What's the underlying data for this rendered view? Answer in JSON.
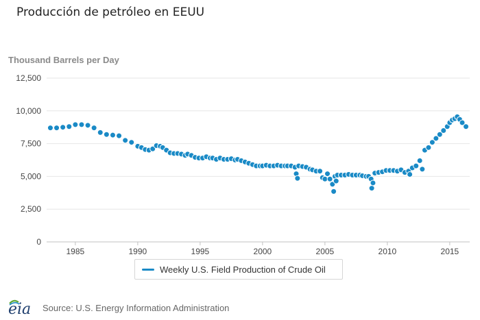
{
  "page": {
    "title": "Producción de petróleo en EEUU",
    "source": "Source: U.S. Energy Information Administration",
    "logo_text": "eia"
  },
  "colors": {
    "series": "#1a8ac6",
    "axis": "#c0c0c0",
    "grid": "#e6e6e6",
    "text": "#444444",
    "ylabel": "#8a8a8a"
  },
  "chart_data": {
    "type": "scatter",
    "title": "",
    "ylabel": "Thousand Barrels per Day",
    "xlabel": "",
    "xlim": [
      1982.7,
      2016.6
    ],
    "ylim": [
      0,
      12500
    ],
    "yticks": [
      0,
      2500,
      5000,
      7500,
      10000,
      12500
    ],
    "ytick_labels": [
      "0",
      "2,500",
      "5,000",
      "7,500",
      "10,000",
      "12,500"
    ],
    "xticks": [
      1985,
      1990,
      1995,
      2000,
      2005,
      2010,
      2015
    ],
    "xtick_labels": [
      "1985",
      "1990",
      "1995",
      "2000",
      "2005",
      "2010",
      "2015"
    ],
    "grid": "horizontal",
    "legend_position": "bottom",
    "series": [
      {
        "name": "Weekly U.S. Field Production of Crude Oil",
        "x": [
          1983.0,
          1983.5,
          1984.0,
          1984.5,
          1985.0,
          1985.5,
          1986.0,
          1986.5,
          1987.0,
          1987.5,
          1988.0,
          1988.5,
          1989.0,
          1989.5,
          1990.0,
          1990.3,
          1990.6,
          1990.9,
          1991.2,
          1991.5,
          1991.8,
          1992.0,
          1992.3,
          1992.6,
          1992.9,
          1993.2,
          1993.5,
          1993.8,
          1994.0,
          1994.3,
          1994.6,
          1994.9,
          1995.2,
          1995.5,
          1995.8,
          1996.0,
          1996.3,
          1996.6,
          1996.9,
          1997.2,
          1997.5,
          1997.8,
          1998.0,
          1998.3,
          1998.6,
          1998.9,
          1999.2,
          1999.5,
          1999.8,
          2000.0,
          2000.3,
          2000.6,
          2000.9,
          2001.2,
          2001.5,
          2001.8,
          2002.0,
          2002.3,
          2002.6,
          2002.7,
          2002.8,
          2002.9,
          2003.2,
          2003.5,
          2003.8,
          2004.0,
          2004.3,
          2004.6,
          2004.8,
          2005.0,
          2005.2,
          2005.4,
          2005.6,
          2005.7,
          2005.8,
          2005.9,
          2006.0,
          2006.3,
          2006.6,
          2006.9,
          2007.2,
          2007.5,
          2007.8,
          2008.0,
          2008.3,
          2008.5,
          2008.7,
          2008.75,
          2008.85,
          2009.0,
          2009.3,
          2009.6,
          2009.9,
          2010.2,
          2010.5,
          2010.8,
          2011.1,
          2011.4,
          2011.7,
          2011.8,
          2012.0,
          2012.3,
          2012.6,
          2012.8,
          2013.0,
          2013.3,
          2013.6,
          2013.9,
          2014.2,
          2014.5,
          2014.8,
          2015.0,
          2015.2,
          2015.4,
          2015.6,
          2015.8,
          2016.0,
          2016.3
        ],
        "values": [
          8700,
          8700,
          8750,
          8800,
          8950,
          8950,
          8900,
          8700,
          8350,
          8200,
          8150,
          8100,
          7750,
          7600,
          7300,
          7200,
          7050,
          7000,
          7100,
          7350,
          7300,
          7200,
          7000,
          6800,
          6750,
          6750,
          6700,
          6600,
          6700,
          6600,
          6450,
          6400,
          6400,
          6500,
          6400,
          6400,
          6300,
          6400,
          6300,
          6300,
          6350,
          6250,
          6300,
          6200,
          6100,
          6000,
          5900,
          5800,
          5800,
          5800,
          5850,
          5800,
          5800,
          5850,
          5800,
          5800,
          5800,
          5800,
          5700,
          5200,
          4850,
          5800,
          5750,
          5700,
          5550,
          5500,
          5400,
          5400,
          4900,
          4800,
          5200,
          4800,
          4400,
          3850,
          5000,
          4650,
          5100,
          5100,
          5100,
          5150,
          5100,
          5100,
          5100,
          5050,
          5000,
          5000,
          4800,
          4100,
          4500,
          5250,
          5300,
          5350,
          5450,
          5450,
          5450,
          5400,
          5500,
          5300,
          5400,
          5150,
          5650,
          5800,
          6200,
          5550,
          7000,
          7200,
          7600,
          7900,
          8200,
          8500,
          8800,
          9100,
          9300,
          9400,
          9550,
          9350,
          9100,
          8800
        ]
      }
    ]
  }
}
